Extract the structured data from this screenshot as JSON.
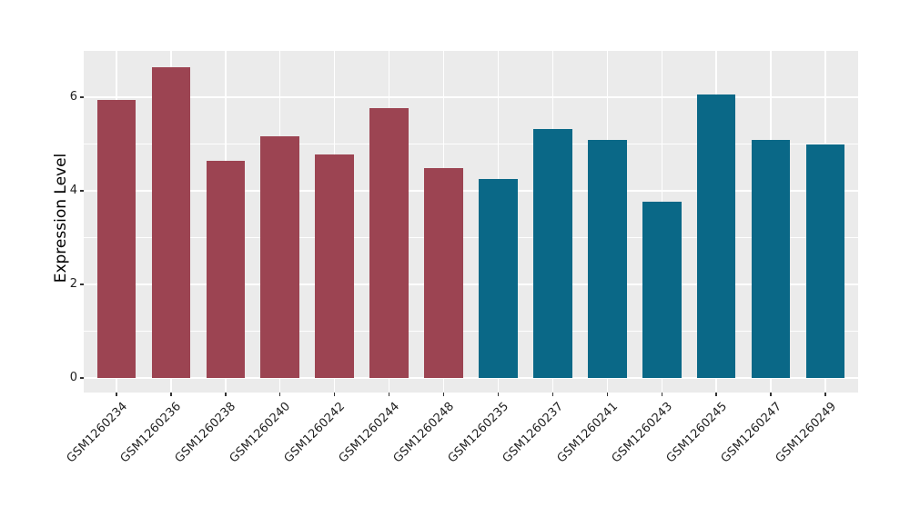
{
  "chart_data": {
    "type": "bar",
    "title": "",
    "xlabel": "",
    "ylabel": "Expression Level",
    "ylim": [
      -0.33,
      6.99
    ],
    "yticks": [
      0,
      2,
      4,
      6
    ],
    "ytick_labels": [
      "0",
      "2",
      "4",
      "6"
    ],
    "yticks_minor": [
      1,
      3,
      5
    ],
    "grid": "on",
    "legend_position": "none",
    "categories": [
      "GSM1260234",
      "GSM1260236",
      "GSM1260238",
      "GSM1260240",
      "GSM1260242",
      "GSM1260244",
      "GSM1260248",
      "GSM1260235",
      "GSM1260237",
      "GSM1260241",
      "GSM1260243",
      "GSM1260245",
      "GSM1260247",
      "GSM1260249"
    ],
    "values": [
      5.95,
      6.65,
      4.65,
      5.17,
      4.78,
      5.77,
      4.49,
      4.26,
      5.32,
      5.08,
      3.77,
      6.06,
      5.08,
      5.0
    ],
    "groups": [
      0,
      0,
      0,
      0,
      0,
      0,
      0,
      1,
      1,
      1,
      1,
      1,
      1,
      1
    ],
    "palette": [
      "#9C4452",
      "#0A6887"
    ],
    "panel_background": "#EBEBEB",
    "gridline_color": "#FFFFFF",
    "axis_text_color": "#222222"
  }
}
